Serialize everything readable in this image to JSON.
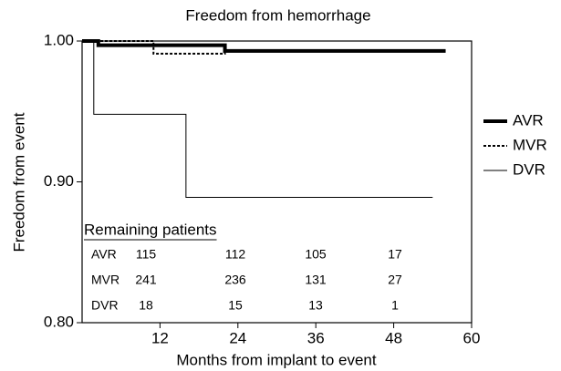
{
  "chart_data": {
    "type": "step",
    "title": "Freedom from hemorrhage",
    "x_label": "Months from implant to event",
    "y_label": "Freedom from event",
    "xlim": [
      0,
      60
    ],
    "xticks": [
      12,
      24,
      36,
      48,
      60
    ],
    "ylim": [
      0.8,
      1.0
    ],
    "yticks": [
      {
        "value": 0.8,
        "label": "0.80"
      },
      {
        "value": 0.9,
        "label": "0.90"
      },
      {
        "value": 1.0,
        "label": "1.00"
      }
    ],
    "series": [
      {
        "name": "AVR",
        "color": "#000000",
        "style": "solid-thick",
        "x": [
          0,
          2.5,
          22,
          56
        ],
        "values": [
          1.0,
          0.997,
          0.993,
          0.993
        ]
      },
      {
        "name": "MVR",
        "color": "#000000",
        "style": "dotted",
        "x": [
          0,
          11,
          22,
          56
        ],
        "values": [
          1.0,
          0.991,
          0.993,
          0.993
        ]
      },
      {
        "name": "DVR",
        "color": "#000000",
        "style": "thin",
        "x": [
          0,
          1.8,
          16,
          54
        ],
        "values": [
          1.0,
          0.948,
          0.889,
          0.889
        ]
      }
    ],
    "risk_table": {
      "title": "Remaining patients",
      "rows": [
        {
          "label": "AVR",
          "counts": [
            115,
            112,
            105,
            17
          ]
        },
        {
          "label": "MVR",
          "counts": [
            241,
            236,
            131,
            27
          ]
        },
        {
          "label": "DVR",
          "counts": [
            18,
            15,
            13,
            1
          ]
        }
      ]
    }
  }
}
